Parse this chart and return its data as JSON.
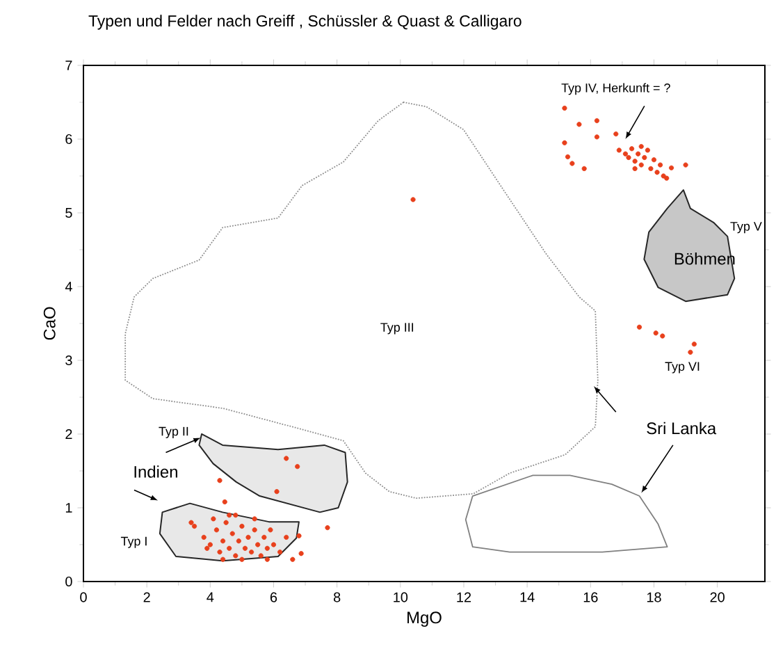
{
  "chart_data": {
    "type": "scatter",
    "title": "Typen und Felder nach Greiff , Schüssler & Quast & Calligaro",
    "xlabel": "MgO",
    "ylabel": "CaO",
    "xlim": [
      0,
      21.5
    ],
    "ylim": [
      0,
      7
    ],
    "xticks": [
      0,
      2,
      4,
      6,
      8,
      10,
      12,
      14,
      16,
      18,
      20
    ],
    "yticks": [
      0,
      1,
      2,
      3,
      4,
      5,
      6,
      7
    ],
    "grid": false,
    "marker": "circle",
    "series": [
      {
        "color": "#e8401c",
        "x": [
          10.4,
          6.4,
          6.75,
          6.1,
          4.3,
          4.46,
          7.7,
          6.8,
          6.87,
          4.8,
          3.5,
          3.8,
          4.0,
          4.2,
          4.3,
          4.4,
          4.5,
          4.6,
          4.7,
          4.8,
          4.9,
          5.0,
          5.1,
          5.2,
          5.3,
          5.4,
          5.5,
          5.6,
          5.7,
          5.8,
          5.9,
          6.0,
          6.2,
          4.1,
          4.6,
          5.0,
          5.4,
          3.9,
          4.4,
          5.8,
          6.4,
          6.6,
          3.4,
          15.18,
          15.64,
          16.2,
          16.2,
          15.18,
          15.28,
          15.42,
          15.8,
          16.8,
          18.55,
          19.0,
          18.4,
          16.9,
          17.1,
          17.2,
          17.3,
          17.4,
          17.5,
          17.6,
          17.7,
          17.8,
          17.9,
          18.0,
          18.1,
          18.2,
          17.4,
          17.6,
          18.3,
          17.54,
          18.06,
          18.27,
          19.27,
          19.15
        ],
        "values": [
          5.18,
          1.67,
          1.56,
          1.22,
          1.37,
          1.08,
          0.73,
          0.62,
          0.38,
          0.9,
          0.75,
          0.6,
          0.5,
          0.7,
          0.4,
          0.55,
          0.8,
          0.45,
          0.65,
          0.35,
          0.55,
          0.75,
          0.45,
          0.6,
          0.4,
          0.7,
          0.5,
          0.35,
          0.6,
          0.45,
          0.7,
          0.5,
          0.4,
          0.85,
          0.9,
          0.3,
          0.85,
          0.45,
          0.3,
          0.3,
          0.6,
          0.3,
          0.8,
          6.42,
          6.2,
          6.25,
          6.03,
          5.95,
          5.76,
          5.67,
          5.6,
          6.07,
          5.61,
          5.65,
          5.47,
          5.85,
          5.8,
          5.75,
          5.87,
          5.7,
          5.8,
          5.65,
          5.75,
          5.85,
          5.6,
          5.72,
          5.55,
          5.65,
          5.6,
          5.9,
          5.5,
          3.45,
          3.37,
          3.33,
          3.22,
          3.11
        ]
      }
    ],
    "annotations": [
      "Typ III",
      "Typ II",
      "Indien",
      "Typ I",
      "Typ IV, Herkunft = ?",
      "Typ V",
      "Böhmen",
      "Typ VI",
      "Sri Lanka"
    ]
  }
}
